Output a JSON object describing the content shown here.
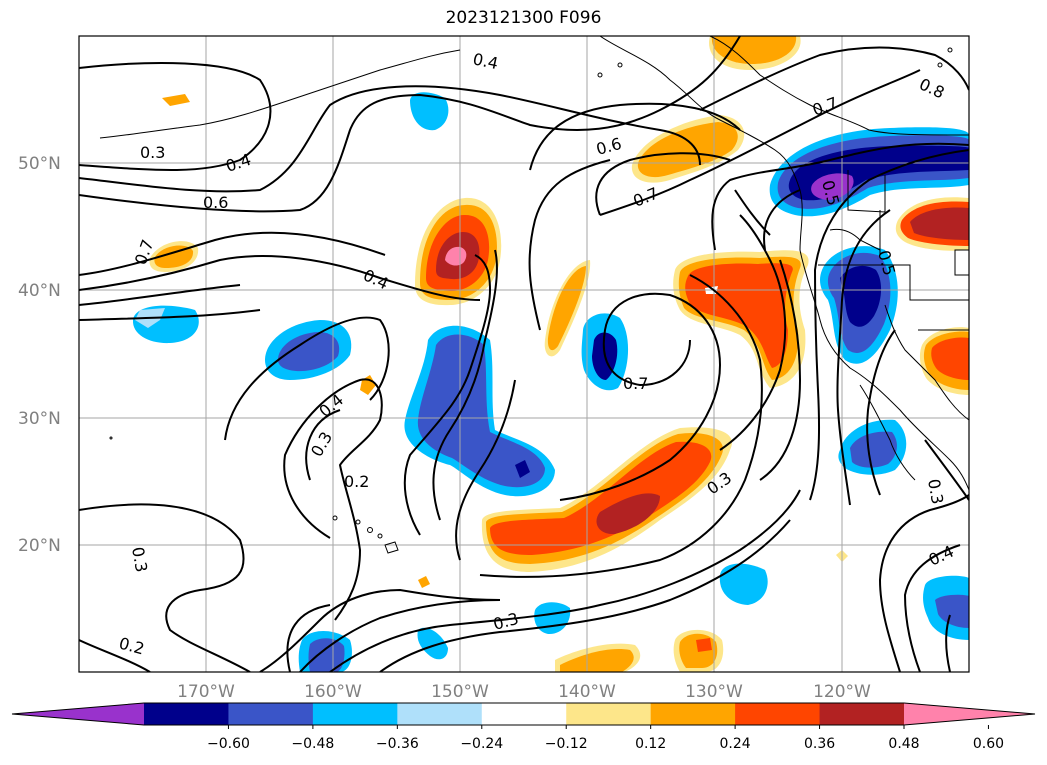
{
  "title": "2023121300 F096",
  "map": {
    "lat_labels": [
      "50°N",
      "40°N",
      "30°N",
      "20°N"
    ],
    "lon_labels": [
      "170°W",
      "160°W",
      "150°W",
      "140°W",
      "130°W",
      "120°W"
    ],
    "contour_labels": [
      "0.4",
      "0.8",
      "0.7",
      "0.3",
      "0.4",
      "0.6",
      "0.6",
      "0.7",
      "0.7",
      "0.4",
      "0.7",
      "0.4",
      "0.3",
      "0.2",
      "0.3",
      "0.3",
      "0.2",
      "0.3",
      "0.4",
      "0.3",
      "0.5",
      "0.5"
    ]
  },
  "colorbar": {
    "ticks": [
      "−0.60",
      "−0.48",
      "−0.36",
      "−0.24",
      "−0.12",
      "0.12",
      "0.24",
      "0.36",
      "0.48",
      "0.60"
    ],
    "colors": [
      "#9932cc",
      "#00008b",
      "#3a55c8",
      "#00bfff",
      "#afe0fa",
      "#ffffff",
      "#fde68a",
      "#ffa500",
      "#ff4500",
      "#b22222",
      "#ff82ab"
    ]
  }
}
